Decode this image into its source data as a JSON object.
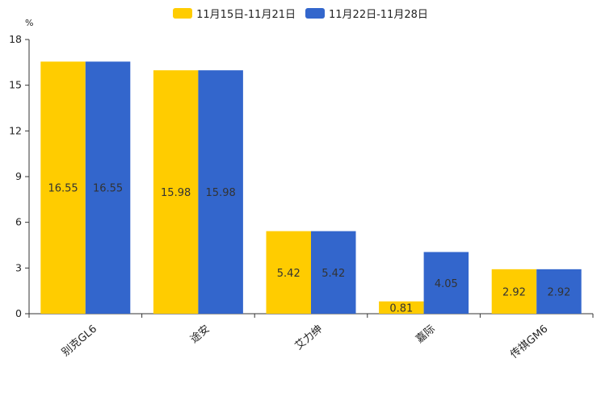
{
  "colors": {
    "series1": "#FFCC00",
    "series2": "#3366CC",
    "axis": "#333333",
    "text": "#222222"
  },
  "chart_data": {
    "type": "bar",
    "unit_label": "%",
    "categories": [
      "别克GL6",
      "途安",
      "艾力绅",
      "嘉际",
      "传祺GM6"
    ],
    "series": [
      {
        "name": "11月15日-11月21日",
        "values": [
          16.55,
          15.98,
          5.42,
          0.81,
          2.92
        ]
      },
      {
        "name": "11月22日-11月28日",
        "values": [
          16.55,
          15.98,
          5.42,
          4.05,
          2.92
        ]
      }
    ],
    "value_labels": [
      [
        "16.55",
        "15.98",
        "5.42",
        "0.81",
        "2.92"
      ],
      [
        "16.55",
        "15.98",
        "5.42",
        "4.05",
        "2.92"
      ]
    ],
    "ylim": [
      0,
      18
    ],
    "yticks": [
      "0",
      "3",
      "6",
      "9",
      "12",
      "15",
      "18"
    ],
    "legend_position": "top-center",
    "grid": false
  }
}
